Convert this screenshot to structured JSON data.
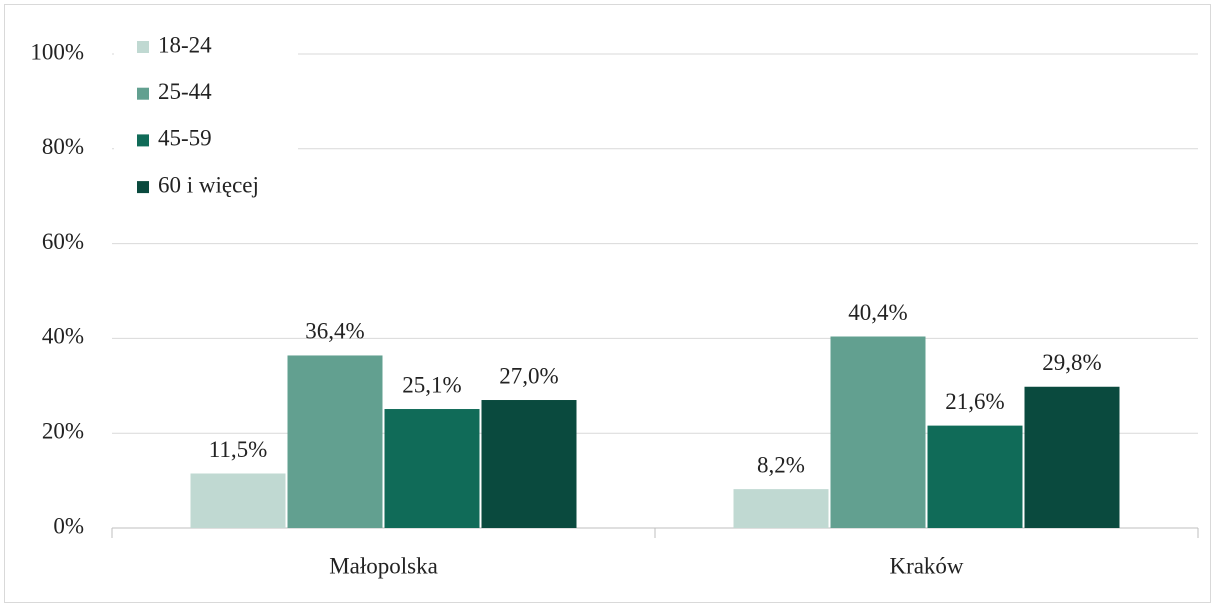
{
  "chart_data": {
    "type": "bar",
    "categories": [
      "Małopolska",
      "Kraków"
    ],
    "series": [
      {
        "name": "18-24",
        "color": "#c0d9d2",
        "values": [
          11.5,
          8.2
        ],
        "value_labels": [
          "11,5%",
          "8,2%"
        ]
      },
      {
        "name": "25-44",
        "color": "#62a090",
        "values": [
          36.4,
          40.4
        ],
        "value_labels": [
          "36,4%",
          "40,4%"
        ]
      },
      {
        "name": "45-59",
        "color": "#106b58",
        "values": [
          25.1,
          21.6
        ],
        "value_labels": [
          "25,1%",
          "21,6%"
        ]
      },
      {
        "name": "60 i więcej",
        "color": "#0a4a3e",
        "values": [
          27.0,
          29.8
        ],
        "value_labels": [
          "27,0%",
          "29,8%"
        ]
      }
    ],
    "ylim": [
      0,
      100
    ],
    "yticks": [
      {
        "value": 0,
        "label": "0%"
      },
      {
        "value": 20,
        "label": "20%"
      },
      {
        "value": 40,
        "label": "40%"
      },
      {
        "value": 60,
        "label": "60%"
      },
      {
        "value": 80,
        "label": "80%"
      },
      {
        "value": 100,
        "label": "100%"
      }
    ],
    "grid": true,
    "legend": "top-left"
  }
}
